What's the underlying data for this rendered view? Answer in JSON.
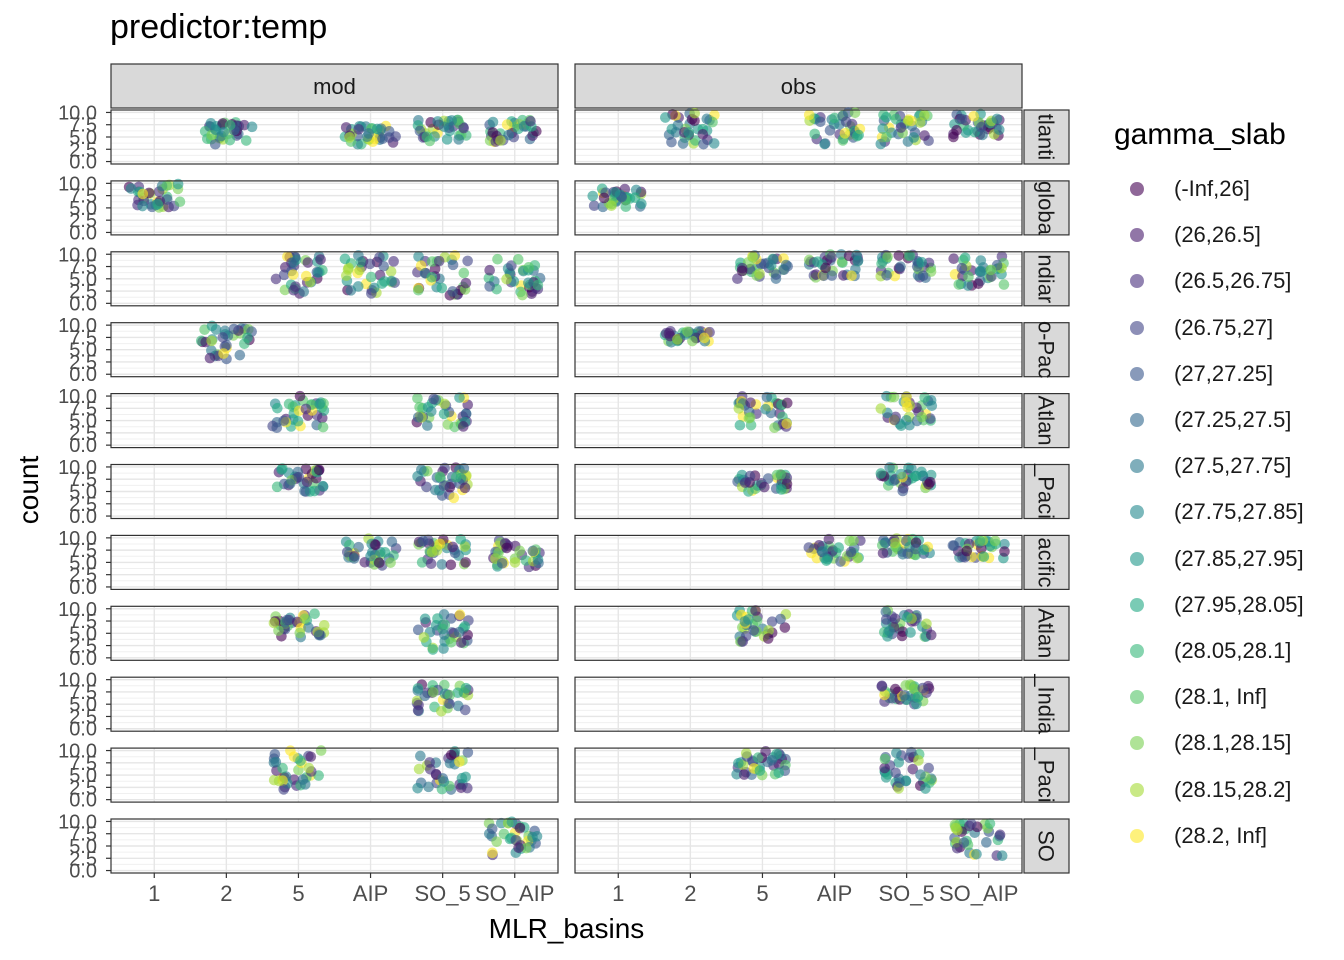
{
  "chart_data": {
    "type": "scatter",
    "title": "predictor:temp",
    "xlabel": "MLR_basins",
    "ylabel": "count",
    "x_categories": [
      "1",
      "2",
      "5",
      "AIP",
      "SO_5",
      "SO_AIP"
    ],
    "y_ticks": [
      "0.0",
      "2.5",
      "5.0",
      "7.5",
      "10.0"
    ],
    "ylim": [
      0,
      10
    ],
    "columns": [
      "mod",
      "obs"
    ],
    "rows": [
      "Atlantic",
      "global",
      "Indian",
      "Indo-Pacific",
      "N_Atlantic",
      "N_Pacific",
      "Pacific",
      "S_Atlantic",
      "S_Indian",
      "S_Pacific",
      "SO"
    ],
    "row_labels_visible": [
      "tlanti",
      "globa",
      "ndiar",
      "o-Pac",
      "Atlan",
      "_Paci",
      "acific",
      "Atlan",
      "_India",
      "_Paci",
      "SO"
    ],
    "legend": {
      "title": "gamma_slab",
      "placement": "right",
      "items": [
        "(-Inf,26]",
        "(26,26.5]",
        "(26.5,26.75]",
        "(26.75,27]",
        "(27,27.25]",
        "(27.25,27.5]",
        "(27.5,27.75]",
        "(27.75,27.85]",
        "(27.85,27.95]",
        "(27.95,28.05]",
        "(28.05,28.1]",
        "(28.1, Inf]",
        "(28.1,28.15]",
        "(28.15,28.2]",
        "(28.2, Inf]"
      ],
      "colors": [
        "#440154",
        "#481A6C",
        "#472F7D",
        "#414487",
        "#39568C",
        "#31688E",
        "#2A788E",
        "#23888E",
        "#1F988B",
        "#22A884",
        "#35B779",
        "#54C568",
        "#7AD151",
        "#A5DB36",
        "#FDE725"
      ]
    },
    "panels": [
      {
        "row": "Atlantic",
        "column": "mod",
        "clusters": [
          {
            "x": "2",
            "y_min": 3.5,
            "y_max": 8
          },
          {
            "x": "AIP",
            "y_min": 3.5,
            "y_max": 8
          },
          {
            "x": "SO_5",
            "y_min": 4,
            "y_max": 8.5
          },
          {
            "x": "SO_AIP",
            "y_min": 4,
            "y_max": 8.5
          }
        ]
      },
      {
        "row": "Atlantic",
        "column": "obs",
        "clusters": [
          {
            "x": "2",
            "y_min": 3.5,
            "y_max": 10
          },
          {
            "x": "AIP",
            "y_min": 3.5,
            "y_max": 10
          },
          {
            "x": "SO_5",
            "y_min": 3.5,
            "y_max": 10
          },
          {
            "x": "SO_AIP",
            "y_min": 5,
            "y_max": 10
          }
        ]
      },
      {
        "row": "global",
        "column": "mod",
        "clusters": [
          {
            "x": "1",
            "y_min": 5,
            "y_max": 10
          }
        ]
      },
      {
        "row": "global",
        "column": "obs",
        "clusters": [
          {
            "x": "1",
            "y_min": 5,
            "y_max": 9
          }
        ]
      },
      {
        "row": "Indian",
        "column": "mod",
        "clusters": [
          {
            "x": "5",
            "y_min": 2,
            "y_max": 10
          },
          {
            "x": "AIP",
            "y_min": 2,
            "y_max": 10
          },
          {
            "x": "SO_5",
            "y_min": 1.5,
            "y_max": 10
          },
          {
            "x": "SO_AIP",
            "y_min": 1.5,
            "y_max": 9
          }
        ]
      },
      {
        "row": "Indian",
        "column": "obs",
        "clusters": [
          {
            "x": "5",
            "y_min": 5,
            "y_max": 10
          },
          {
            "x": "AIP",
            "y_min": 5,
            "y_max": 10
          },
          {
            "x": "SO_5",
            "y_min": 5,
            "y_max": 10
          },
          {
            "x": "SO_AIP",
            "y_min": 3.5,
            "y_max": 10
          }
        ]
      },
      {
        "row": "Indo-Pacific",
        "column": "mod",
        "clusters": [
          {
            "x": "2",
            "y_min": 3,
            "y_max": 10
          }
        ]
      },
      {
        "row": "Indo-Pacific",
        "column": "obs",
        "clusters": [
          {
            "x": "2",
            "y_min": 6.5,
            "y_max": 9
          }
        ]
      },
      {
        "row": "N_Atlantic",
        "column": "mod",
        "clusters": [
          {
            "x": "5",
            "y_min": 3.5,
            "y_max": 10
          },
          {
            "x": "SO_5",
            "y_min": 3.5,
            "y_max": 10
          }
        ]
      },
      {
        "row": "N_Atlantic",
        "column": "obs",
        "clusters": [
          {
            "x": "5",
            "y_min": 3.5,
            "y_max": 10
          },
          {
            "x": "SO_5",
            "y_min": 3.5,
            "y_max": 10
          }
        ]
      },
      {
        "row": "N_Pacific",
        "column": "mod",
        "clusters": [
          {
            "x": "5",
            "y_min": 4.5,
            "y_max": 10
          },
          {
            "x": "SO_5",
            "y_min": 3.5,
            "y_max": 10
          }
        ]
      },
      {
        "row": "N_Pacific",
        "column": "obs",
        "clusters": [
          {
            "x": "5",
            "y_min": 5,
            "y_max": 8.5
          },
          {
            "x": "SO_5",
            "y_min": 5,
            "y_max": 10
          }
        ]
      },
      {
        "row": "Pacific",
        "column": "mod",
        "clusters": [
          {
            "x": "AIP",
            "y_min": 4,
            "y_max": 10
          },
          {
            "x": "SO_5",
            "y_min": 4.5,
            "y_max": 10
          },
          {
            "x": "SO_AIP",
            "y_min": 4,
            "y_max": 9.5
          }
        ]
      },
      {
        "row": "Pacific",
        "column": "obs",
        "clusters": [
          {
            "x": "AIP",
            "y_min": 5,
            "y_max": 10
          },
          {
            "x": "SO_5",
            "y_min": 6.5,
            "y_max": 10
          },
          {
            "x": "SO_AIP",
            "y_min": 5.5,
            "y_max": 9.5
          }
        ]
      },
      {
        "row": "S_Atlantic",
        "column": "mod",
        "clusters": [
          {
            "x": "5",
            "y_min": 4,
            "y_max": 9
          },
          {
            "x": "SO_5",
            "y_min": 1.5,
            "y_max": 9
          }
        ]
      },
      {
        "row": "S_Atlantic",
        "column": "obs",
        "clusters": [
          {
            "x": "5",
            "y_min": 3,
            "y_max": 10
          },
          {
            "x": "SO_5",
            "y_min": 4,
            "y_max": 10
          }
        ]
      },
      {
        "row": "S_Indian",
        "column": "mod",
        "clusters": [
          {
            "x": "SO_5",
            "y_min": 3.5,
            "y_max": 9
          }
        ]
      },
      {
        "row": "S_Indian",
        "column": "obs",
        "clusters": [
          {
            "x": "SO_5",
            "y_min": 5,
            "y_max": 9
          }
        ]
      },
      {
        "row": "S_Pacific",
        "column": "mod",
        "clusters": [
          {
            "x": "5",
            "y_min": 2,
            "y_max": 10
          },
          {
            "x": "SO_5",
            "y_min": 2,
            "y_max": 10
          }
        ]
      },
      {
        "row": "S_Pacific",
        "column": "obs",
        "clusters": [
          {
            "x": "5",
            "y_min": 5,
            "y_max": 10
          },
          {
            "x": "SO_5",
            "y_min": 2,
            "y_max": 10
          }
        ]
      },
      {
        "row": "SO",
        "column": "mod",
        "clusters": [
          {
            "x": "SO_AIP",
            "y_min": 3,
            "y_max": 10
          }
        ]
      },
      {
        "row": "SO",
        "column": "obs",
        "clusters": [
          {
            "x": "SO_AIP",
            "y_min": 3,
            "y_max": 10
          }
        ]
      }
    ]
  }
}
